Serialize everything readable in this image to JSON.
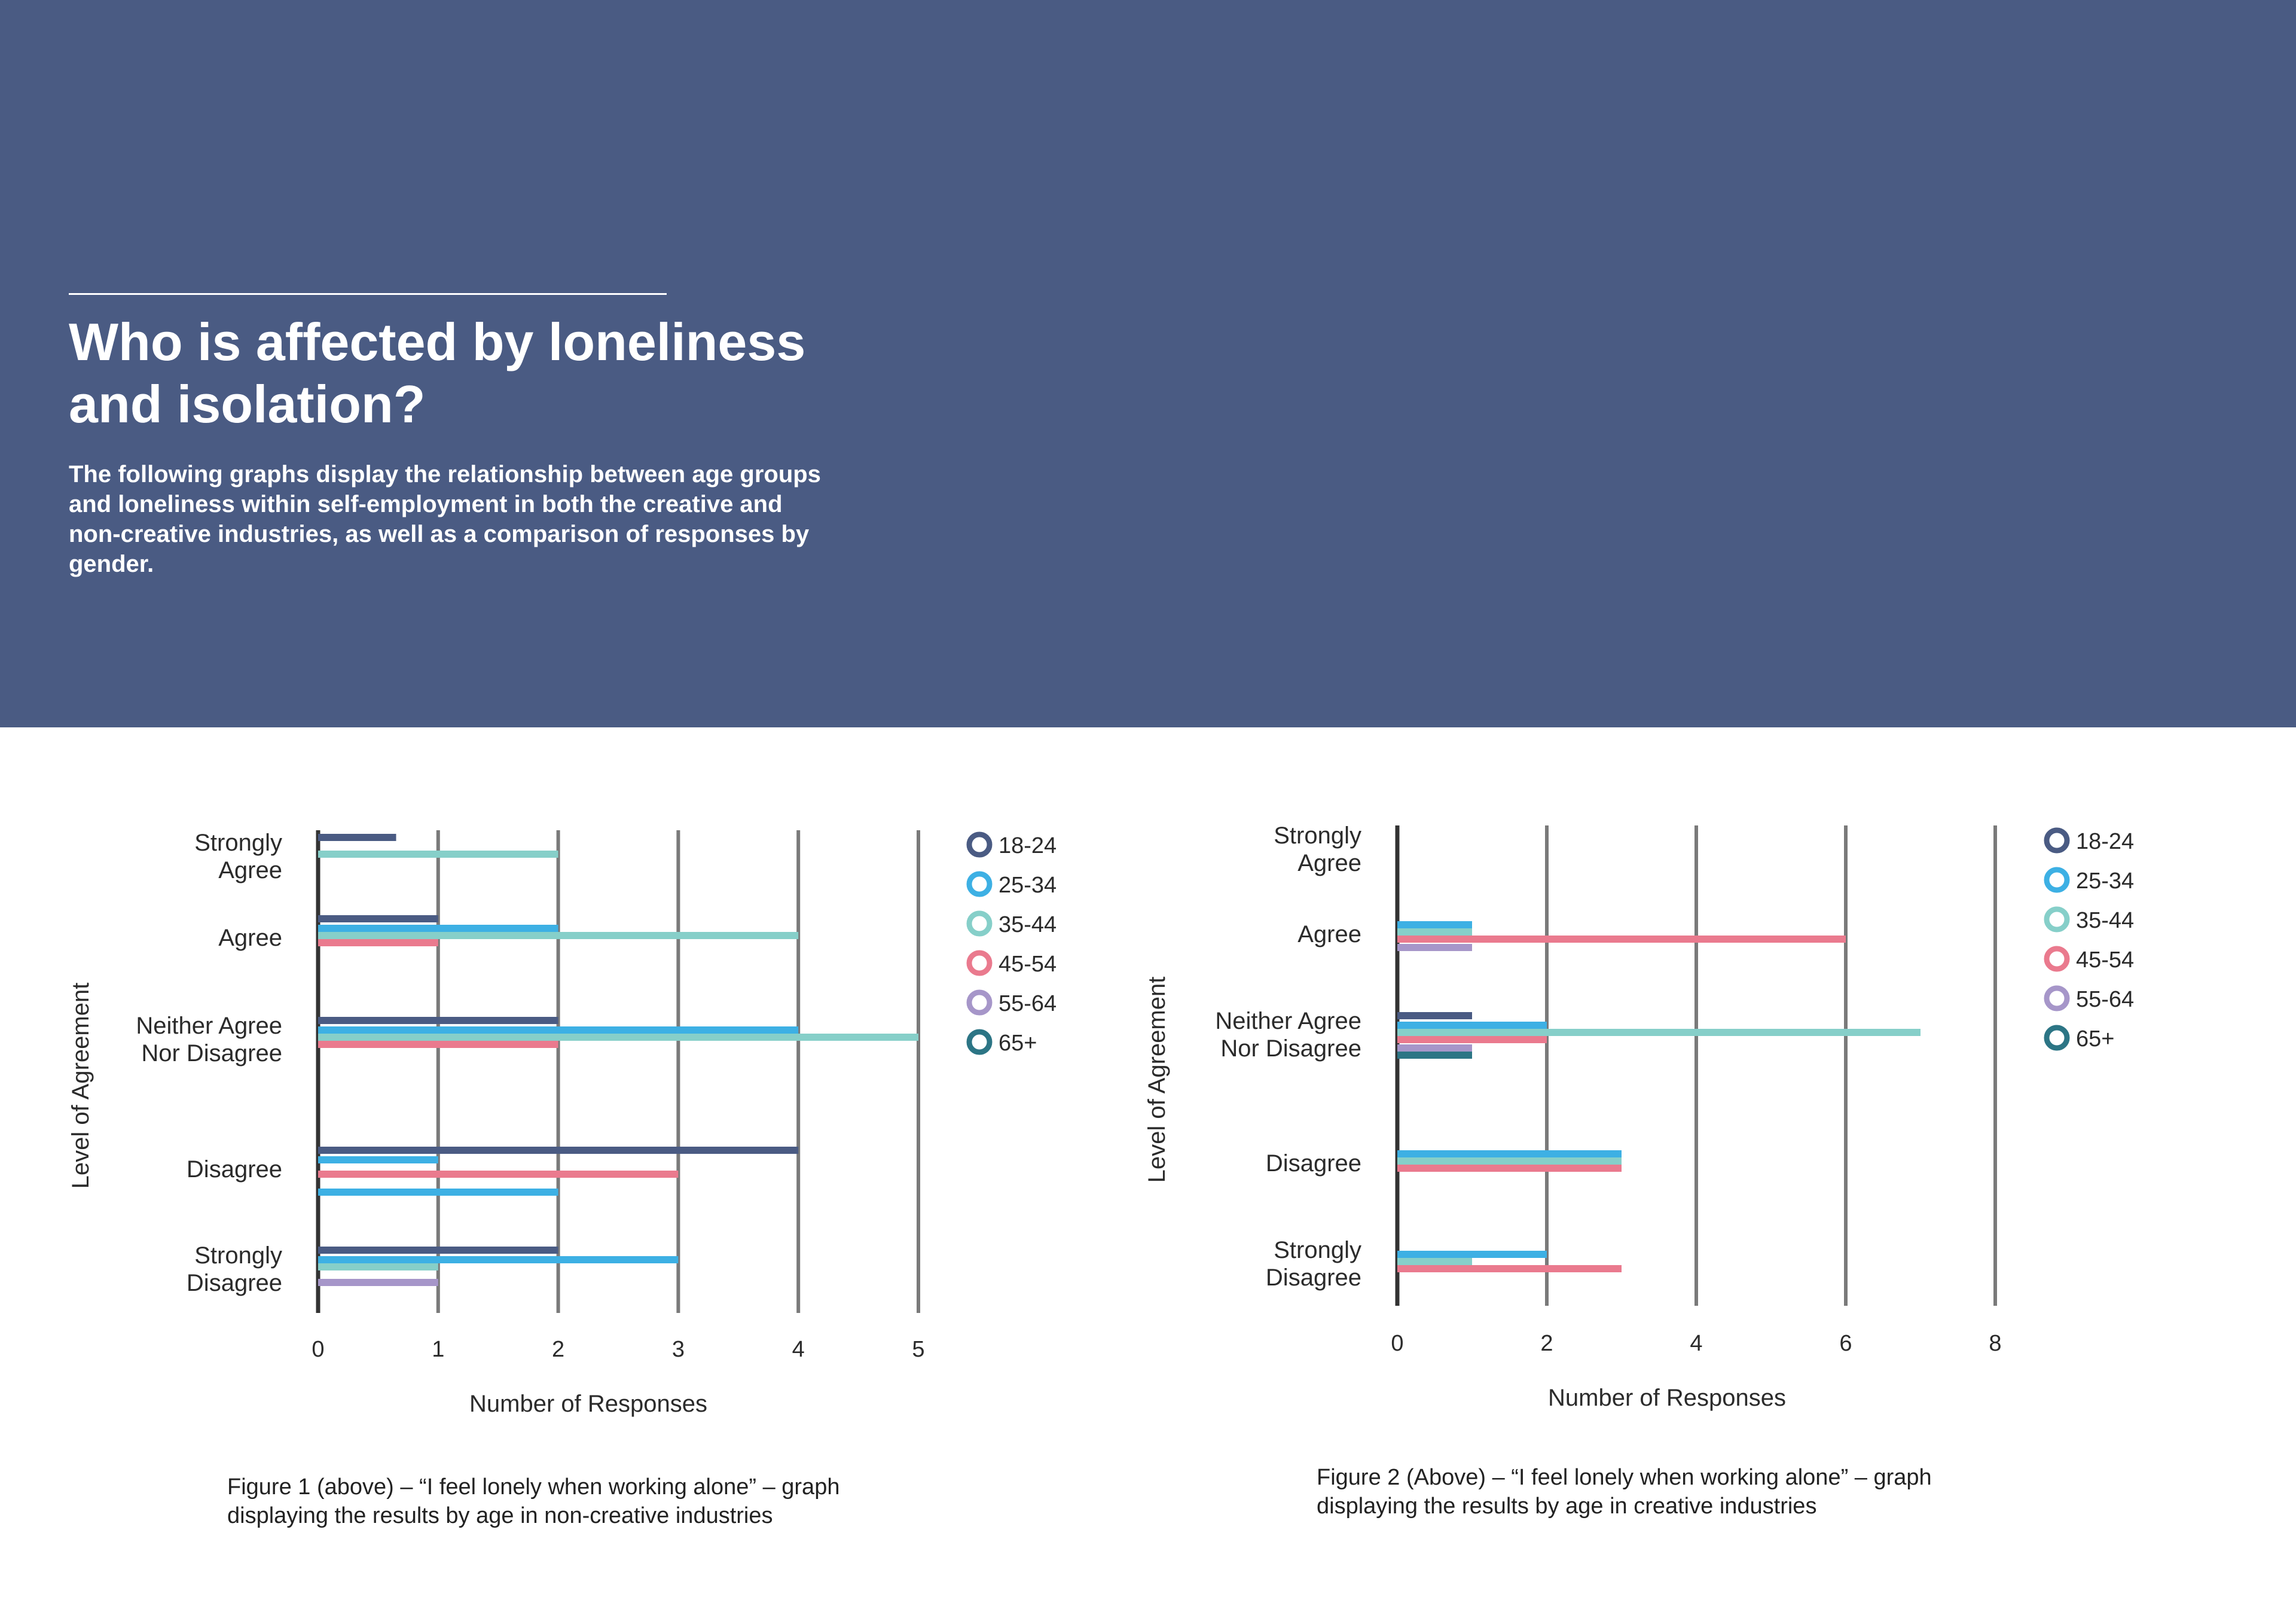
{
  "header": {
    "title": "Who is affected by loneliness and isolation?",
    "description": "The following graphs display the relationship between age groups and loneliness within self-employment in both the creative and non-creative industries, as well as a comparison of responses by gender."
  },
  "colors": {
    "header_bg": "#4a5b83",
    "series": {
      "18-24": "#4a5b83",
      "25-34": "#3db0e4",
      "35-44": "#86cfc9",
      "45-54": "#ea7a8e",
      "55-64": "#a696c9",
      "65+": "#2c7585"
    }
  },
  "chart_data": [
    {
      "type": "bar",
      "orientation": "horizontal",
      "categories": [
        "Strongly Agree",
        "Agree",
        "Neither Agree Nor Disagree",
        "Disagree",
        "Strongly Disagree"
      ],
      "series": [
        {
          "name": "18-24",
          "values": [
            0.65,
            1,
            2,
            4,
            2
          ]
        },
        {
          "name": "25-34",
          "values": [
            0,
            2,
            4,
            1,
            3
          ]
        },
        {
          "name": "35-44",
          "values": [
            2,
            4,
            5,
            0,
            1
          ]
        },
        {
          "name": "45-54",
          "values": [
            0,
            1,
            2,
            3,
            0
          ]
        },
        {
          "name": "55-64",
          "values": [
            0,
            0,
            0,
            0,
            1
          ]
        },
        {
          "name": "65+",
          "values": [
            0,
            0,
            0,
            0,
            0
          ]
        }
      ],
      "disagree_extra_25_34": 2,
      "xlabel": "Number of Responses",
      "ylabel": "Level of Agreement",
      "xticks": [
        0,
        1,
        2,
        3,
        4,
        5
      ],
      "xlim": [
        0,
        5
      ],
      "grid": "vertical",
      "legend": "right",
      "caption": "Figure 1 (above) – “I feel lonely when working alone” – graph displaying the results by age in non-creative industries"
    },
    {
      "type": "bar",
      "orientation": "horizontal",
      "categories": [
        "Strongly Agree",
        "Agree",
        "Neither Agree Nor Disagree",
        "Disagree",
        "Strongly Disagree"
      ],
      "series": [
        {
          "name": "18-24",
          "values": [
            0,
            0,
            1,
            0,
            0
          ]
        },
        {
          "name": "25-34",
          "values": [
            0,
            1,
            2,
            3,
            2
          ]
        },
        {
          "name": "35-44",
          "values": [
            0,
            1,
            7,
            3,
            1
          ]
        },
        {
          "name": "45-54",
          "values": [
            0,
            6,
            2,
            3,
            3
          ]
        },
        {
          "name": "55-64",
          "values": [
            0,
            1,
            1,
            0,
            0
          ]
        },
        {
          "name": "65+",
          "values": [
            0,
            0,
            1,
            0,
            0
          ]
        }
      ],
      "xlabel": "Number of Responses",
      "ylabel": "Level of Agreement",
      "xticks": [
        0,
        2,
        4,
        6,
        8
      ],
      "xlim": [
        0,
        8
      ],
      "grid": "vertical",
      "legend": "right",
      "caption": "Figure 2 (Above) – “I feel lonely when working alone” – graph displaying the results by age in creative industries"
    }
  ]
}
